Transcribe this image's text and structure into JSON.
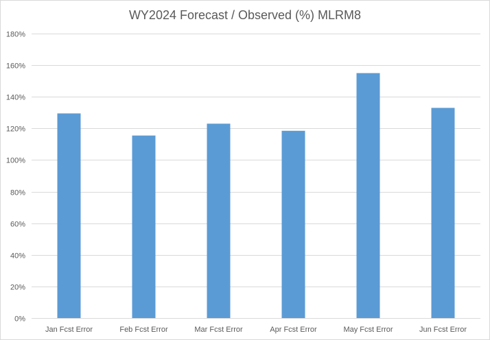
{
  "chart_data": {
    "type": "bar",
    "title": "WY2024 Forecast / Observed (%) MLRM8",
    "categories": [
      "Jan Fcst Error",
      "Feb Fcst Error",
      "Mar Fcst Error",
      "Apr Fcst Error",
      "May Fcst Error",
      "Jun Fcst Error"
    ],
    "series": [
      {
        "values": [
          129.5,
          115.5,
          123,
          118.5,
          155,
          133
        ]
      }
    ],
    "yticks": [
      "0%",
      "20%",
      "40%",
      "60%",
      "80%",
      "100%",
      "120%",
      "140%",
      "160%",
      "180%"
    ],
    "ylim": [
      0,
      180
    ],
    "grid": true,
    "bar_color": "#5b9bd5",
    "gridline_color": "#d9d9d9",
    "legend": "none"
  }
}
